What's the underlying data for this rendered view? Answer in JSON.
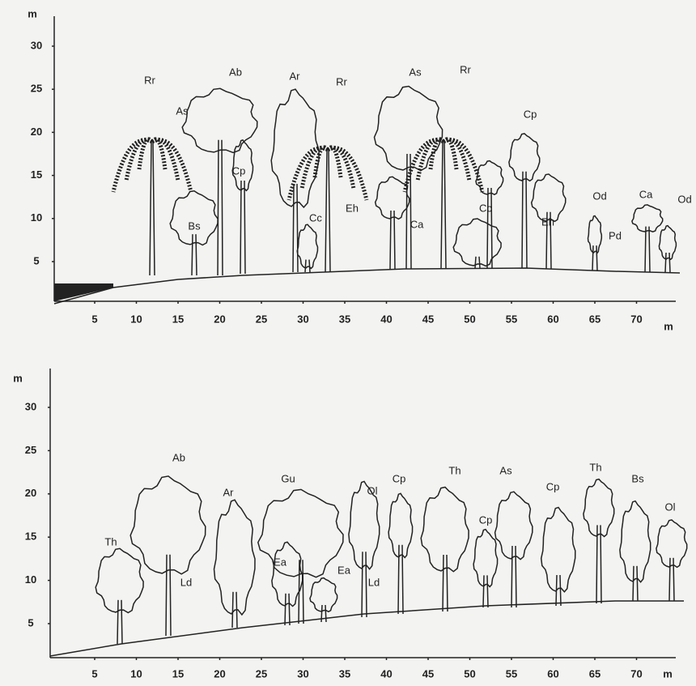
{
  "profiles": [
    {
      "y_axis": {
        "unit": "m",
        "ticks": [
          30,
          25,
          20,
          15,
          10,
          5
        ]
      },
      "x_axis": {
        "unit": "m",
        "ticks": [
          5,
          10,
          15,
          20,
          25,
          30,
          35,
          40,
          45,
          50,
          55,
          60,
          65,
          70
        ]
      },
      "labels": [
        "Rr",
        "As",
        "Ab",
        "Ar",
        "Rr",
        "As",
        "Rr",
        "Cp",
        "Cp",
        "Bs",
        "Cc",
        "Eh",
        "Ca",
        "Cc",
        "Eh",
        "Od",
        "Pd",
        "Ca",
        "Od"
      ]
    },
    {
      "y_axis": {
        "unit": "m",
        "ticks": [
          30,
          25,
          20,
          15,
          10,
          5
        ]
      },
      "x_axis": {
        "unit": "m",
        "ticks": [
          5,
          10,
          15,
          20,
          25,
          30,
          35,
          40,
          45,
          50,
          55,
          60,
          65,
          70
        ]
      },
      "labels": [
        "Ab",
        "Ar",
        "Gu",
        "Ol",
        "Cp",
        "Th",
        "As",
        "Cp",
        "Th",
        "Bs",
        "Ol",
        "Th",
        "Ld",
        "Ea",
        "Ea",
        "Ld",
        "Cp"
      ]
    }
  ]
}
